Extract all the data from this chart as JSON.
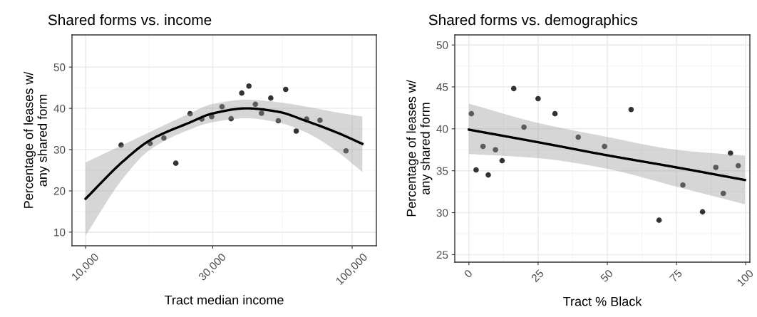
{
  "chart_data": [
    {
      "type": "scatter",
      "title": "Shared forms vs. income",
      "xlabel": "Tract median income",
      "ylabel": "Percentage of leases w/\nany shared form",
      "log": "x",
      "grid": true,
      "xlim": [
        8890,
        123300
      ],
      "ylim": [
        6.7,
        57.8
      ],
      "xticks": [
        {
          "value": 10000,
          "label": "10,000"
        },
        {
          "value": 30000,
          "label": "30,000"
        },
        {
          "value": 100000,
          "label": "100,000"
        }
      ],
      "yticks": [
        10,
        20,
        30,
        40,
        50
      ],
      "series": [
        {
          "marker": "circle",
          "color": "#333333",
          "x": [
            13590,
            17460,
            19660,
            21800,
            24660,
            27290,
            29720,
            32500,
            35150,
            38540,
            41000,
            43350,
            45710,
            49520,
            52850,
            56340,
            61690,
            67490,
            75740,
            94830
          ],
          "values": [
            31.1,
            31.5,
            32.8,
            26.7,
            38.7,
            37.4,
            38.0,
            40.4,
            37.5,
            43.7,
            45.4,
            41.0,
            38.8,
            42.5,
            37.0,
            44.6,
            34.5,
            37.4,
            37.1,
            29.7
          ]
        },
        {
          "type": "line",
          "color": "#000000",
          "x": [
            10000,
            13840,
            17460,
            24660,
            29720,
            40350,
            52540,
            67490,
            88000,
            109200
          ],
          "values": [
            18.1,
            27.2,
            32.3,
            36.6,
            38.7,
            40.0,
            39.2,
            36.9,
            34.1,
            31.4
          ],
          "lower": [
            9.2,
            23.1,
            30.0,
            34.9,
            36.6,
            37.6,
            36.6,
            34.1,
            29.5,
            24.6
          ],
          "upper": [
            26.9,
            31.2,
            34.3,
            38.8,
            41.0,
            42.1,
            41.5,
            40.4,
            39.0,
            38.0
          ]
        }
      ]
    },
    {
      "type": "scatter",
      "title": "Shared forms vs. demographics",
      "xlabel": "Tract % Black",
      "ylabel": "Percentage of leases w/\nany shared form",
      "grid": true,
      "xlim": [
        -5.1,
        101.5
      ],
      "ylim": [
        24.1,
        51.2
      ],
      "xticks": [
        0,
        25,
        50,
        75,
        100
      ],
      "yticks": [
        25,
        30,
        35,
        40,
        45,
        50
      ],
      "series": [
        {
          "marker": "circle",
          "color": "#333333",
          "x": [
            0.9,
            2.6,
            5.1,
            7.0,
            9.6,
            12.0,
            16.2,
            19.9,
            25.0,
            31.1,
            39.5,
            49.0,
            58.6,
            68.7,
            77.3,
            84.4,
            89.2,
            91.9,
            94.5,
            97.3
          ],
          "values": [
            41.8,
            35.1,
            37.9,
            34.5,
            37.5,
            36.2,
            44.8,
            40.2,
            43.6,
            41.8,
            39.0,
            37.9,
            42.3,
            29.1,
            33.3,
            30.1,
            35.4,
            32.3,
            37.1,
            35.6
          ]
        },
        {
          "type": "line",
          "color": "#000000",
          "x": [
            0,
            25,
            49,
            75,
            99.7
          ],
          "values": [
            39.9,
            38.4,
            36.9,
            35.4,
            33.9
          ],
          "lower": [
            37.0,
            36.5,
            35.3,
            33.1,
            31.0
          ],
          "upper": [
            43.0,
            40.7,
            39.1,
            37.5,
            36.8
          ]
        }
      ]
    }
  ]
}
